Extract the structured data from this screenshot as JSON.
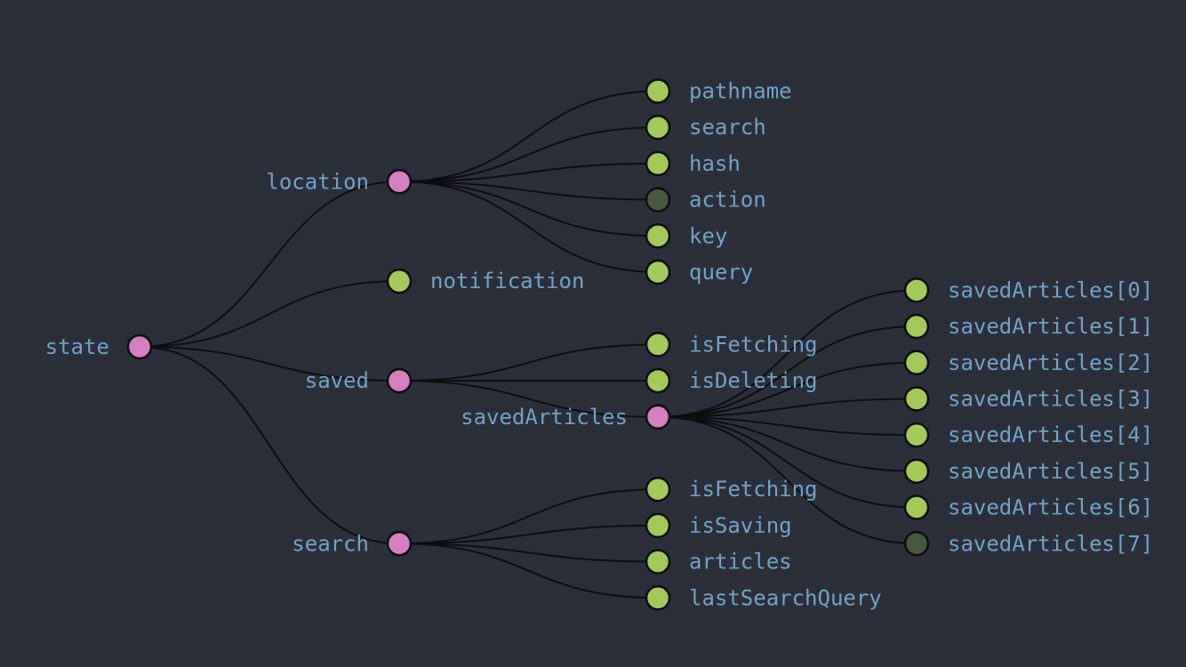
{
  "colors": {
    "background": "#2b2f3a",
    "branch_node": "#d67fc0",
    "leaf_node": "#a2c95a",
    "collapsed_leaf": "#48583c",
    "label": "#6fa3c7",
    "link": "#0b0d10"
  },
  "tree": {
    "label": "state",
    "type": "branch",
    "children": [
      {
        "label": "location",
        "type": "branch",
        "children": [
          {
            "label": "pathname",
            "type": "leaf"
          },
          {
            "label": "search",
            "type": "leaf"
          },
          {
            "label": "hash",
            "type": "leaf"
          },
          {
            "label": "action",
            "type": "collapsed"
          },
          {
            "label": "key",
            "type": "leaf"
          },
          {
            "label": "query",
            "type": "leaf"
          }
        ]
      },
      {
        "label": "notification",
        "type": "leaf"
      },
      {
        "label": "saved",
        "type": "branch",
        "children": [
          {
            "label": "isFetching",
            "type": "leaf"
          },
          {
            "label": "isDeleting",
            "type": "leaf"
          },
          {
            "label": "savedArticles",
            "type": "branch",
            "children": [
              {
                "label": "savedArticles[0]",
                "type": "leaf"
              },
              {
                "label": "savedArticles[1]",
                "type": "leaf"
              },
              {
                "label": "savedArticles[2]",
                "type": "leaf"
              },
              {
                "label": "savedArticles[3]",
                "type": "leaf"
              },
              {
                "label": "savedArticles[4]",
                "type": "leaf"
              },
              {
                "label": "savedArticles[5]",
                "type": "leaf"
              },
              {
                "label": "savedArticles[6]",
                "type": "leaf"
              },
              {
                "label": "savedArticles[7]",
                "type": "collapsed"
              }
            ]
          }
        ]
      },
      {
        "label": "search",
        "type": "branch",
        "children": [
          {
            "label": "isFetching",
            "type": "leaf"
          },
          {
            "label": "isSaving",
            "type": "leaf"
          },
          {
            "label": "articles",
            "type": "leaf"
          },
          {
            "label": "lastSearchQuery",
            "type": "leaf"
          }
        ]
      }
    ]
  }
}
